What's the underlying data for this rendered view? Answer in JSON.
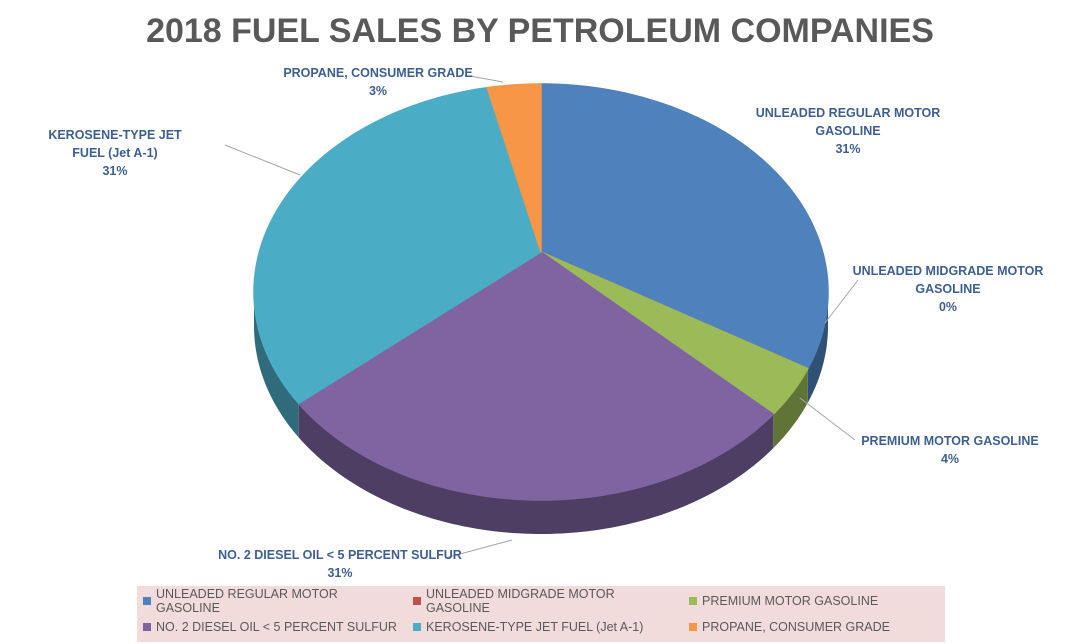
{
  "chart_data": {
    "type": "pie",
    "title": "2018 FUEL SALES BY PETROLEUM COMPANIES",
    "categories": [
      "UNLEADED REGULAR MOTOR GASOLINE",
      "UNLEADED MIDGRADE MOTOR GASOLINE",
      "PREMIUM MOTOR GASOLINE",
      "NO. 2 DIESEL OIL < 5 PERCENT SULFUR",
      "KEROSENE-TYPE JET FUEL (Jet A-1)",
      "PROPANE, CONSUMER GRADE"
    ],
    "values": [
      31,
      0,
      4,
      31,
      31,
      3
    ],
    "value_labels": [
      "31%",
      "0%",
      "4%",
      "31%",
      "31%",
      "3%"
    ],
    "colors": [
      "#4f81bd",
      "#c0504d",
      "#9bbb59",
      "#8064a2",
      "#4bacc6",
      "#f79646"
    ],
    "legend": "bottom"
  }
}
